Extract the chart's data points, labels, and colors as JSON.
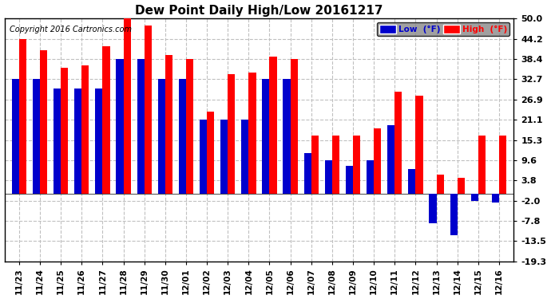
{
  "title": "Dew Point Daily High/Low 20161217",
  "copyright": "Copyright 2016 Cartronics.com",
  "categories": [
    "11/23",
    "11/24",
    "11/25",
    "11/26",
    "11/27",
    "11/28",
    "11/29",
    "11/30",
    "12/01",
    "12/02",
    "12/03",
    "12/04",
    "12/05",
    "12/06",
    "12/07",
    "12/08",
    "12/09",
    "12/10",
    "12/11",
    "12/12",
    "12/13",
    "12/14",
    "12/15",
    "12/16"
  ],
  "high_values": [
    44.2,
    41.0,
    36.0,
    36.5,
    42.0,
    50.0,
    48.0,
    39.5,
    38.4,
    23.5,
    34.0,
    34.5,
    39.2,
    38.4,
    16.5,
    16.5,
    16.5,
    18.5,
    29.0,
    28.0,
    5.5,
    4.5,
    16.5,
    16.5
  ],
  "low_values": [
    32.7,
    32.7,
    30.0,
    30.0,
    30.0,
    38.4,
    38.4,
    32.7,
    32.7,
    21.1,
    21.1,
    21.1,
    32.7,
    32.7,
    11.5,
    9.6,
    8.0,
    9.6,
    19.5,
    7.0,
    -8.5,
    -12.0,
    -2.0,
    -2.5
  ],
  "ylim": [
    -19.3,
    50.0
  ],
  "yticks": [
    50.0,
    44.2,
    38.4,
    32.7,
    26.9,
    21.1,
    15.3,
    9.6,
    3.8,
    -2.0,
    -7.8,
    -13.5,
    -19.3
  ],
  "high_color": "#FF0000",
  "low_color": "#0000CC",
  "bar_width": 0.35,
  "background_color": "#FFFFFF",
  "plot_bg_color": "#FFFFFF",
  "grid_color": "#C0C0C0",
  "legend_low_label": "Low  (°F)",
  "legend_high_label": "High  (°F)"
}
